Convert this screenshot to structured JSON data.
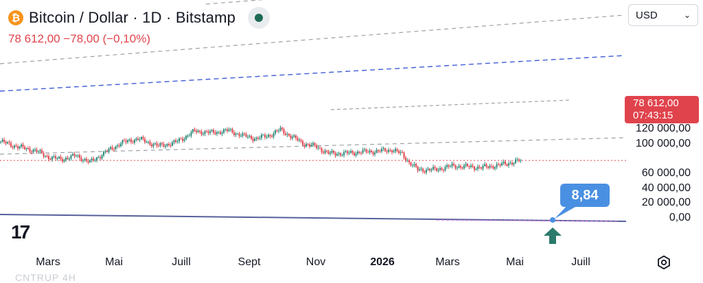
{
  "header": {
    "coin_symbol": "₿",
    "title": "Bitcoin / Dollar · 1D · Bitstamp",
    "quote": "78 612,00  −78,00 (−0,10%)",
    "currency": "USD"
  },
  "price_tag": {
    "price": "78 612,00",
    "countdown": "07:43:15",
    "color": "#e0434c"
  },
  "indicator": {
    "value_label": "8,84",
    "bubble_color": "#4a90e2",
    "arrow_color": "#2b7a6b"
  },
  "footer_fragment": "CNTRUP   4H",
  "icons": {
    "logo": "tradingview-logo-icon",
    "settings": "settings-gear-icon",
    "chevron": "chevron-down-icon"
  },
  "chart_data": {
    "type": "candlestick",
    "y_axis": {
      "ticks": [
        "120 000,00",
        "100 000,00",
        "60 000,00",
        "40 000,00",
        "20 000,00",
        "0,00"
      ],
      "tick_values": [
        120000,
        100000,
        60000,
        40000,
        20000,
        0
      ],
      "range": [
        0,
        140000
      ]
    },
    "x_axis": {
      "ticks": [
        "Mars",
        "Mai",
        "Juill",
        "Sept",
        "Nov",
        "2026",
        "Mars",
        "Mai",
        "Juill"
      ],
      "bold_ticks": [
        "2026"
      ]
    },
    "anchors": [
      [
        0,
        104000
      ],
      [
        10,
        97000
      ],
      [
        20,
        92000
      ],
      [
        28,
        83000
      ],
      [
        35,
        80000
      ],
      [
        44,
        85000
      ],
      [
        52,
        76000
      ],
      [
        60,
        88000
      ],
      [
        70,
        102000
      ],
      [
        80,
        108000
      ],
      [
        92,
        98000
      ],
      [
        102,
        103000
      ],
      [
        113,
        118000
      ],
      [
        123,
        116000
      ],
      [
        133,
        119000
      ],
      [
        141,
        112000
      ],
      [
        149,
        108000
      ],
      [
        157,
        113000
      ],
      [
        163,
        120000
      ],
      [
        170,
        110000
      ],
      [
        177,
        101000
      ],
      [
        184,
        97000
      ],
      [
        191,
        88000
      ],
      [
        200,
        88000
      ],
      [
        210,
        90000
      ],
      [
        220,
        91000
      ],
      [
        228,
        93000
      ],
      [
        234,
        87000
      ],
      [
        238,
        76000
      ],
      [
        243,
        66000
      ],
      [
        253,
        66000
      ],
      [
        263,
        71000
      ],
      [
        273,
        70000
      ],
      [
        280,
        69000
      ],
      [
        290,
        72000
      ],
      [
        298,
        76000
      ],
      [
        303,
        78612
      ]
    ],
    "current_price": 78612,
    "line_colors": {
      "up": "#2b8a7a",
      "down": "#e0434c",
      "channel": "#9aa0a6",
      "midline": "#3f5bd6",
      "indicator": "#55609a"
    }
  }
}
